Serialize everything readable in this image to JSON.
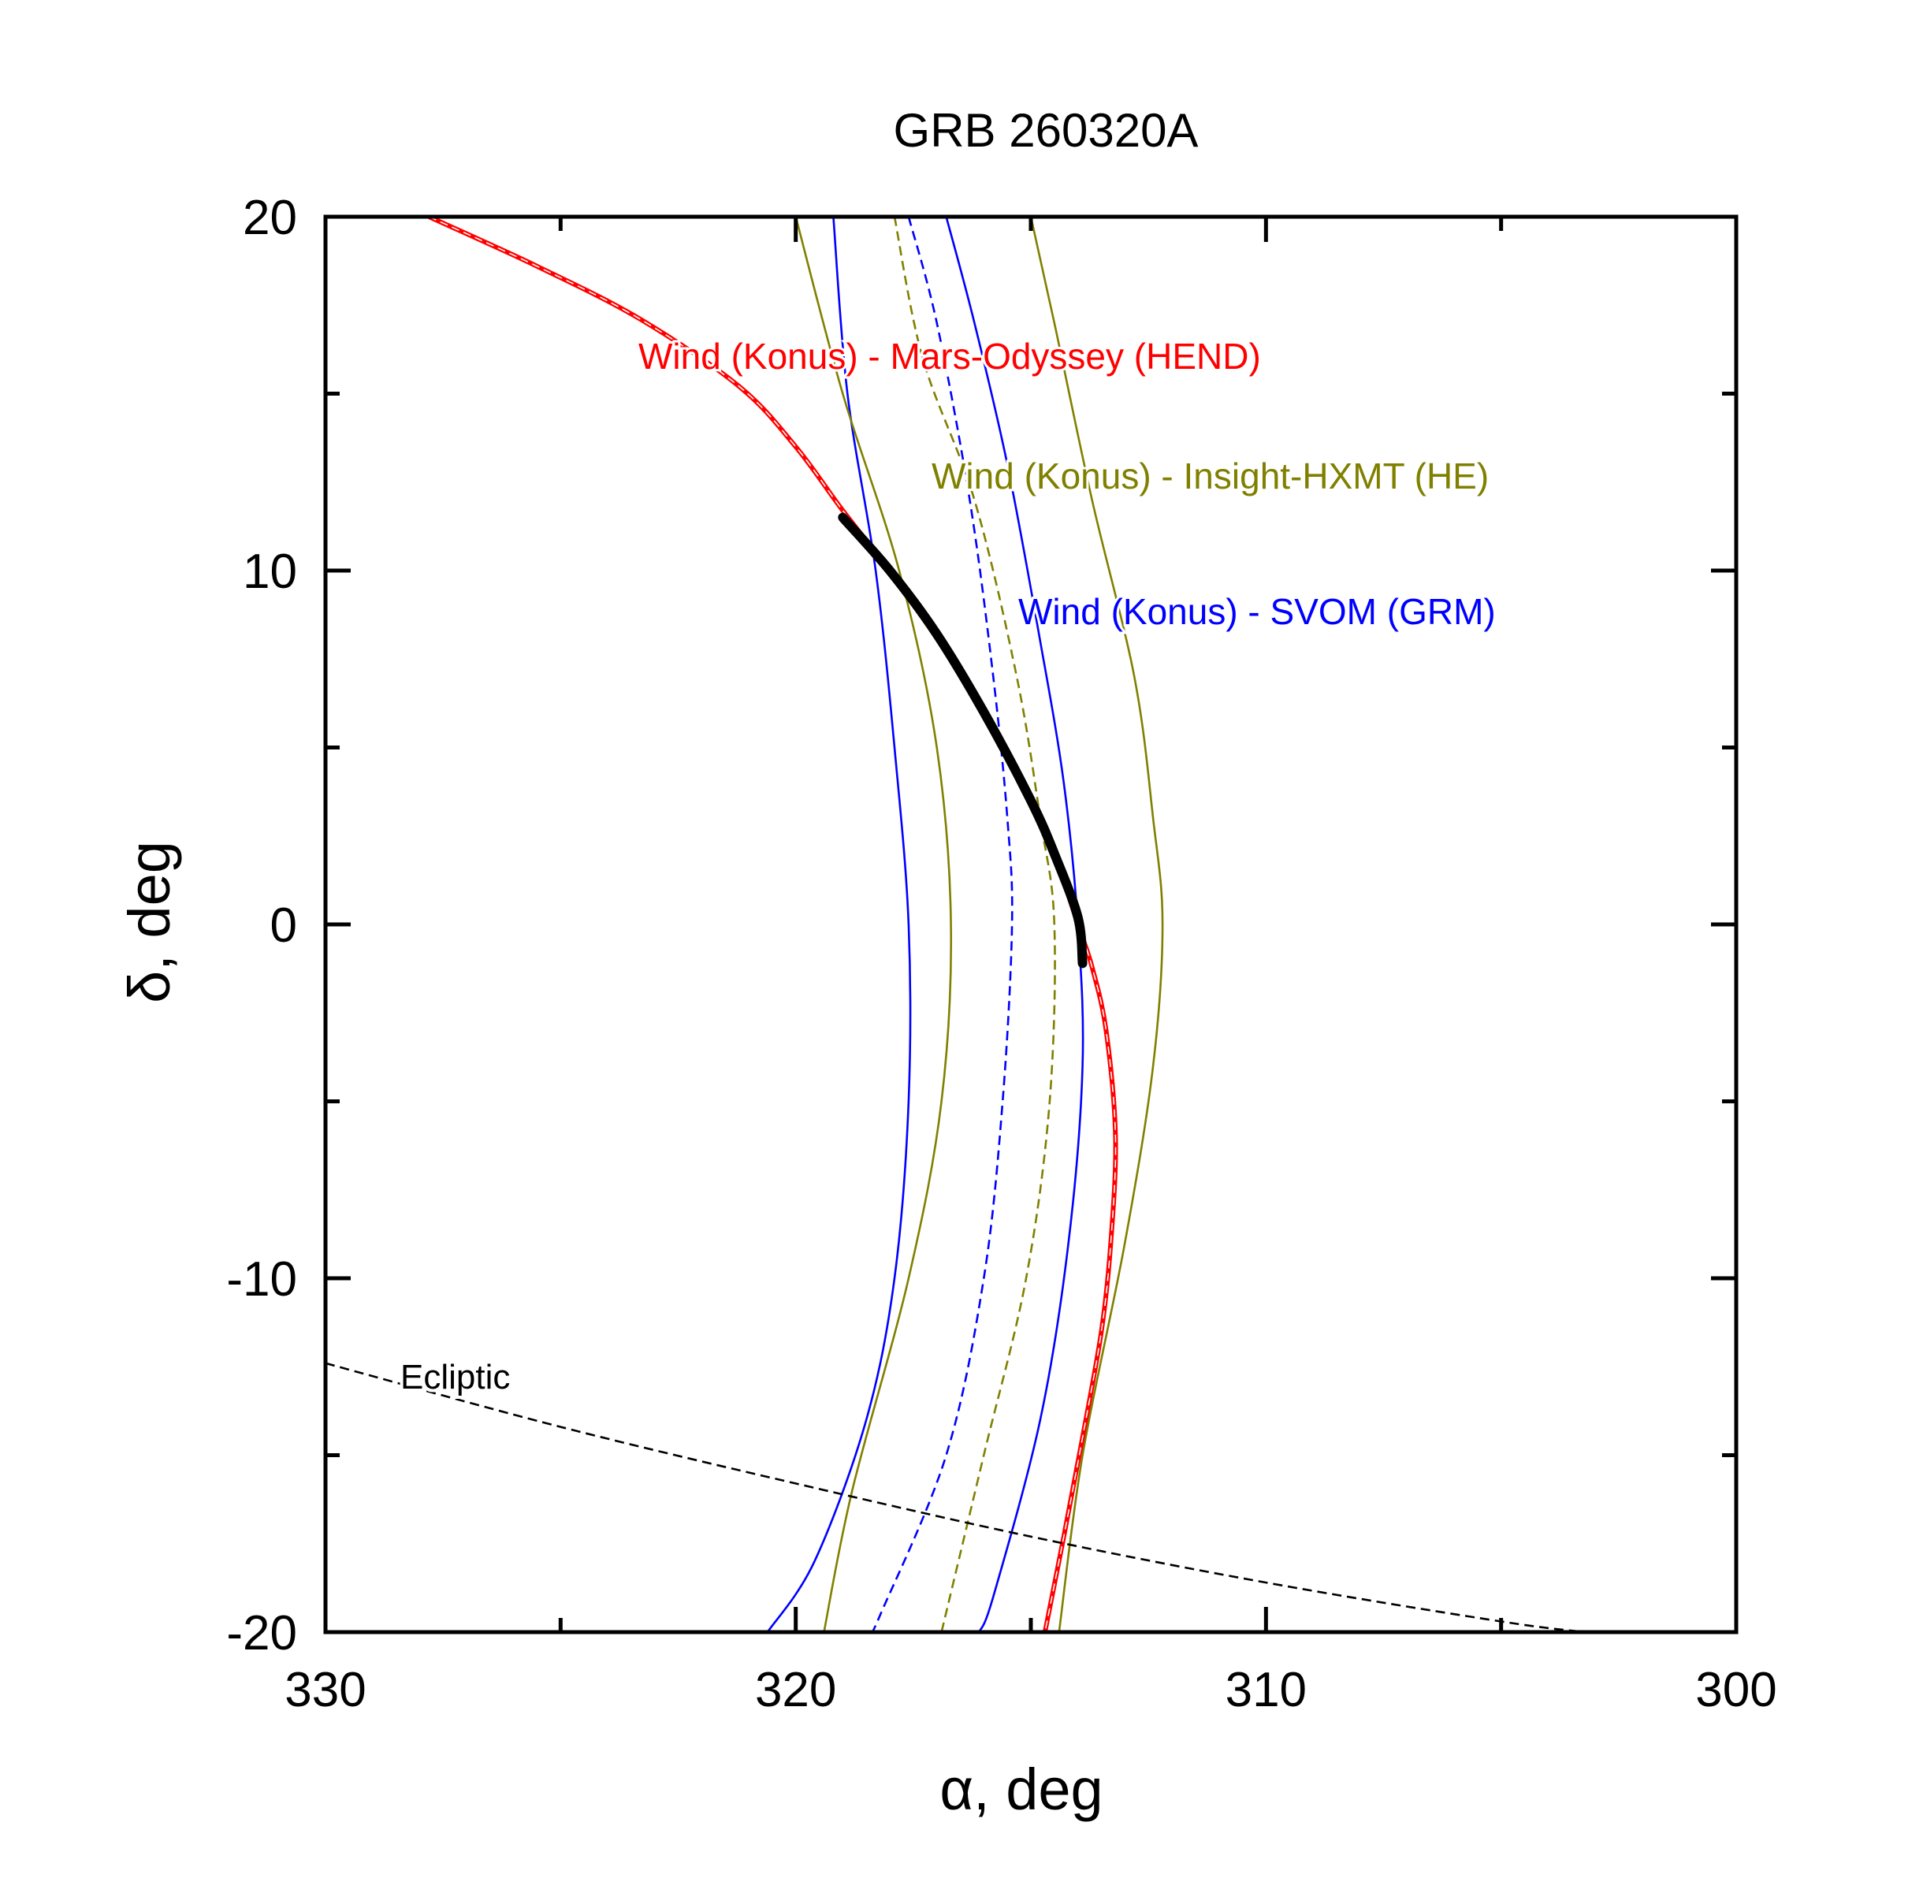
{
  "chart_data": {
    "type": "line",
    "title": "GRB 260320A",
    "xlabel": "α, deg",
    "ylabel": "δ, deg",
    "xlim": [
      330,
      300
    ],
    "ylim": [
      -20,
      20
    ],
    "xticks": [
      330,
      320,
      310,
      300
    ],
    "xtick_labels": [
      "330",
      "320",
      "310",
      "300"
    ],
    "yticks": [
      20,
      10,
      0,
      -10,
      -20
    ],
    "ytick_labels": [
      "20",
      "10",
      "0",
      "-10",
      "-20"
    ],
    "annotations": [
      {
        "text": "Wind (Konus) - Mars-Odyssey (HEND)",
        "color": "#ff0000"
      },
      {
        "text": "Wind (Konus) - Insight-HXMT (HE)",
        "color": "#808000"
      },
      {
        "text": "Wind (Konus) - SVOM (GRM)",
        "color": "#0000ff"
      },
      {
        "text": "Ecliptic",
        "color": "#000000"
      }
    ],
    "series": [
      {
        "name": "svom-inner",
        "color": "#0000ff",
        "dash": "solid",
        "x": [
          319.2,
          318.9,
          318.3,
          317.9,
          317.6,
          317.6,
          317.9,
          318.5,
          319.6,
          320.6
        ],
        "y": [
          20,
          15,
          10,
          5,
          0,
          -5,
          -10,
          -14,
          -18,
          -20
        ]
      },
      {
        "name": "svom-center",
        "color": "#0000ff",
        "dash": "dashed",
        "x": [
          317.6,
          317.0,
          316.3,
          315.8,
          315.5,
          315.4,
          315.6,
          316.0,
          316.8,
          318.2,
          318.4
        ],
        "y": [
          20,
          17,
          12,
          7,
          3,
          0,
          -5,
          -10,
          -15,
          -19.5,
          -20
        ]
      },
      {
        "name": "svom-outer",
        "color": "#0000ff",
        "dash": "solid",
        "x": [
          316.8,
          316.2,
          315.5,
          314.8,
          314.3,
          314.0,
          313.9,
          314.2,
          314.8,
          315.8,
          316.1
        ],
        "y": [
          20,
          17,
          13,
          8,
          4,
          0,
          -4,
          -9,
          -14,
          -19,
          -20
        ]
      },
      {
        "name": "hxmt-inner",
        "color": "#808000",
        "dash": "solid",
        "x": [
          320.0,
          319.0,
          317.8,
          317.0,
          316.7,
          316.9,
          317.6,
          318.8,
          319.4
        ],
        "y": [
          20,
          15,
          10,
          5,
          0,
          -5,
          -10,
          -16,
          -20
        ]
      },
      {
        "name": "hxmt-center",
        "color": "#808000",
        "dash": "dashed",
        "x": [
          317.9,
          317.3,
          316.2,
          315.3,
          314.8,
          314.5,
          314.6,
          315.1,
          316.0,
          316.9
        ],
        "y": [
          20,
          16,
          12,
          7,
          3,
          0,
          -5,
          -10,
          -15,
          -20
        ]
      },
      {
        "name": "hxmt-outer",
        "color": "#808000",
        "dash": "solid",
        "x": [
          315.0,
          314.5,
          313.7,
          312.8,
          312.4,
          312.2,
          312.4,
          313.0,
          313.9,
          314.4
        ],
        "y": [
          20,
          17,
          12,
          7,
          3,
          0,
          -4,
          -9,
          -15,
          -20
        ]
      },
      {
        "name": "mars-odyssey-annulus",
        "color": "#ff0000",
        "dash": "solid",
        "x": [
          327.8,
          325.5,
          323.3,
          321.2,
          320.0,
          319.0,
          318.0,
          317.0,
          316.0,
          315.0,
          314.5,
          314.0,
          313.7,
          313.4,
          313.2,
          313.3,
          313.5,
          313.9,
          314.3,
          314.7
        ],
        "y": [
          20,
          18.6,
          17.1,
          15.2,
          13.5,
          11.7,
          10.0,
          8.2,
          6.0,
          3.5,
          2.0,
          0.0,
          -1.2,
          -3.0,
          -6.0,
          -9.0,
          -11.5,
          -14.5,
          -17.3,
          -20
        ]
      },
      {
        "name": "error-box-arc",
        "color": "#000000",
        "dash": "solid",
        "x": [
          319.0,
          318.0,
          317.0,
          316.0,
          315.0,
          314.5,
          314.0,
          313.9
        ],
        "y": [
          11.5,
          10.0,
          8.2,
          6.0,
          3.5,
          2.0,
          0.2,
          -1.1
        ]
      },
      {
        "name": "ecliptic",
        "color": "#000000",
        "dash": "dashed",
        "x": [
          330,
          325,
          320,
          315,
          310,
          305,
          303.2
        ],
        "y": [
          -12.4,
          -14.2,
          -15.8,
          -17.3,
          -18.6,
          -19.7,
          -20
        ]
      }
    ]
  }
}
